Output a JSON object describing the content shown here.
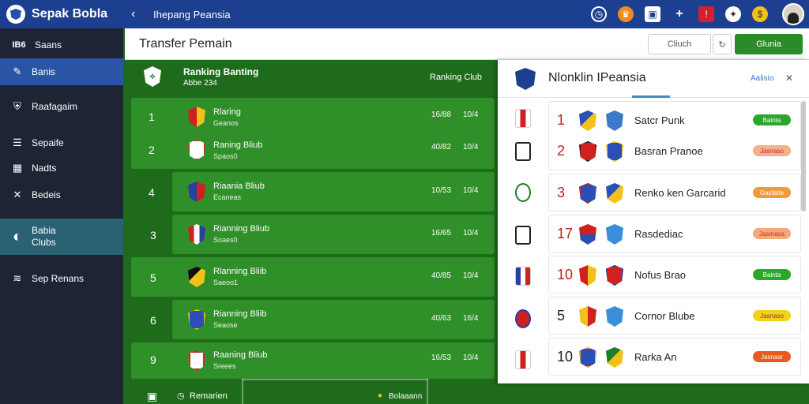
{
  "header": {
    "brand": "Sepak Bobla",
    "breadcrumb": "Ihepang Peansia",
    "icons": [
      "clock-icon",
      "trophy-icon",
      "window-icon",
      "plus-icon",
      "flag-icon",
      "badge-icon",
      "coin-icon"
    ]
  },
  "sidebar": {
    "items": [
      {
        "label": "Saans",
        "prefix": "IB6"
      },
      {
        "label": "Banis"
      },
      {
        "label": "Raafagaim"
      },
      {
        "label": "Sepaife"
      },
      {
        "label": "Nadts"
      },
      {
        "label": "Bedeis"
      },
      {
        "label": "Babia",
        "sub": "Clubs"
      },
      {
        "label": "Sep Renans"
      }
    ]
  },
  "subheader": {
    "title": "Transfer Pemain",
    "btn_secondary": "Cliuch",
    "btn_primary": "Glunia"
  },
  "ranking": {
    "title": "Ranking Banting",
    "subtitle": "Abbe 234",
    "right_label": "Ranking Club",
    "rows": [
      {
        "num": "1",
        "name": "Rlaring",
        "sub": "Geanos",
        "v1": "16/88",
        "v2": "10/4"
      },
      {
        "num": "2",
        "name": "Raning Bliub",
        "sub": "Spaos0",
        "v1": "40/82",
        "v2": "10/4"
      },
      {
        "num": "4",
        "name": "Riaania Bliub",
        "sub": "Ecaneas",
        "v1": "10/53",
        "v2": "10/4"
      },
      {
        "num": "3",
        "name": "Rianning Bliub",
        "sub": "Soaes0",
        "v1": "16/65",
        "v2": "10/4"
      },
      {
        "num": "5",
        "name": "Rlanning Bliib",
        "sub": "Saeoo1",
        "v1": "40/85",
        "v2": "10/4"
      },
      {
        "num": "6",
        "name": "Rianning Bliib",
        "sub": "Seaose",
        "v1": "40/63",
        "v2": "16/4"
      },
      {
        "num": "9",
        "name": "Raaning Bliub",
        "sub": "Sreees",
        "v1": "16/53",
        "v2": "10/4"
      }
    ],
    "footer_left": "Remarien",
    "footer_mid": "Bolaaann"
  },
  "panel": {
    "title": "Nlonklin IPeansia",
    "action": "Aalisio",
    "rows": [
      {
        "num": "1",
        "name": "Satcr Punk",
        "badge": "Bainta",
        "badge_color": "#2aa82a"
      },
      {
        "num": "2",
        "name": "Basran Pranoe",
        "badge": "Jasnaso",
        "badge_color": "#f5b08a"
      },
      {
        "num": "3",
        "name": "Renko ken Garcarid",
        "badge": "Gasfatte",
        "badge_color": "#f09a3a"
      },
      {
        "num": "17",
        "name": "Rasdediac",
        "badge": "Jasmasa",
        "badge_color": "#f5a878"
      },
      {
        "num": "10",
        "name": "Nofus Brao",
        "badge": "Bainta",
        "badge_color": "#2aa82a"
      },
      {
        "num": "5",
        "name": "Cornor Blube",
        "badge": "Jasnaso",
        "badge_color": "#f2d21a"
      },
      {
        "num": "10",
        "name": "Rarka An",
        "badge": "Jasnasr",
        "badge_color": "#e85a20"
      }
    ]
  },
  "colors": {
    "topbar": "#1d3f8f",
    "sidebar": "#1d2535",
    "pitch": "#1f6b1c",
    "row": "#2f8f28",
    "accent_green": "#2c8a2a"
  }
}
